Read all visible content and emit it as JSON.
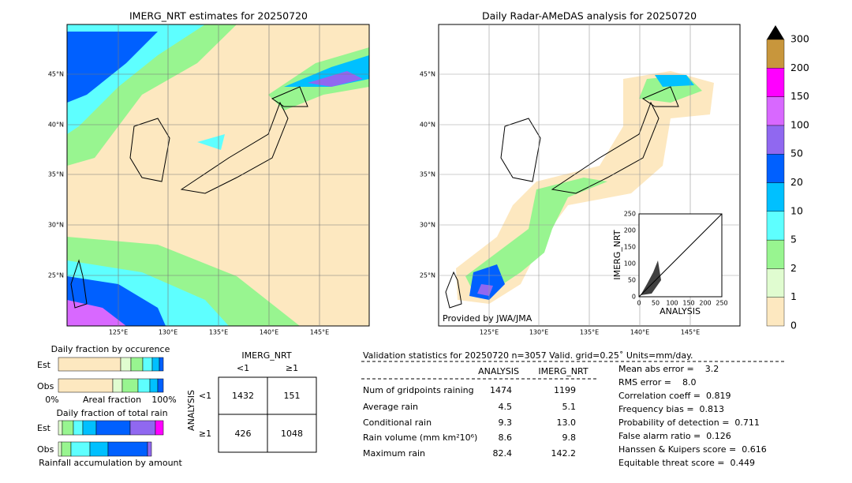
{
  "left_map": {
    "title": "IMERG_NRT estimates for 20250720",
    "lat_labels": [
      "45°N",
      "40°N",
      "35°N",
      "30°N",
      "25°N"
    ],
    "lon_labels": [
      "125°E",
      "130°E",
      "135°E",
      "140°E",
      "145°E"
    ]
  },
  "right_map": {
    "title": "Daily Radar-AMeDAS analysis for 20250720",
    "lat_labels": [
      "45°N",
      "40°N",
      "35°N",
      "30°N",
      "25°N"
    ],
    "lon_labels": [
      "125°E",
      "130°E",
      "135°E",
      "140°E",
      "145°E"
    ],
    "credit": "Provided by JWA/JMA"
  },
  "colorbar": {
    "labels": [
      "0",
      "1",
      "2",
      "5",
      "10",
      "20",
      "50",
      "100",
      "150",
      "200",
      "300"
    ],
    "colors": [
      "#fde8c0",
      "#e0fcd0",
      "#98f590",
      "#5effff",
      "#00c0ff",
      "#0060ff",
      "#9068f0",
      "#d868ff",
      "#ff00ff",
      "#c8963c"
    ]
  },
  "scatter": {
    "xlabel": "ANALYSIS",
    "ylabel": "IMERG_NRT",
    "ticks": [
      "0",
      "50",
      "100",
      "150",
      "200",
      "250"
    ]
  },
  "occurrence": {
    "title": "Daily fraction by occurence",
    "rows": [
      "Est",
      "Obs"
    ],
    "axis": [
      "0%",
      "Areal fraction",
      "100%"
    ]
  },
  "total_rain": {
    "title": "Daily fraction of total rain",
    "rows": [
      "Est",
      "Obs"
    ],
    "footer": "Rainfall accumulation by amount"
  },
  "contingency": {
    "col_title": "IMERG_NRT",
    "row_title": "ANALYSIS",
    "col_labels": [
      "<1",
      "≥1"
    ],
    "row_labels": [
      "<1",
      "≥1"
    ],
    "cells": [
      [
        "1432",
        "151"
      ],
      [
        "426",
        "1048"
      ]
    ]
  },
  "stats": {
    "header": "Validation statistics for 20250720  n=3057 Valid. grid=0.25˚ Units=mm/day.",
    "columns": [
      "ANALYSIS",
      "IMERG_NRT"
    ],
    "rows": [
      [
        "Num of gridpoints raining",
        "1474",
        "1199"
      ],
      [
        "Average rain",
        "4.5",
        "5.1"
      ],
      [
        "Conditional rain",
        "9.3",
        "13.0"
      ],
      [
        "Rain volume (mm km²10⁶)",
        "8.6",
        "9.8"
      ],
      [
        "Maximum rain",
        "82.4",
        "142.2"
      ]
    ],
    "scores": [
      "Mean abs error =    3.2",
      "RMS error =    8.0",
      "Correlation coeff =  0.819",
      "Frequency bias =  0.813",
      "Probability of detection =  0.711",
      "False alarm ratio =  0.126",
      "Hanssen & Kuipers score =  0.616",
      "Equitable threat score =  0.449"
    ]
  }
}
